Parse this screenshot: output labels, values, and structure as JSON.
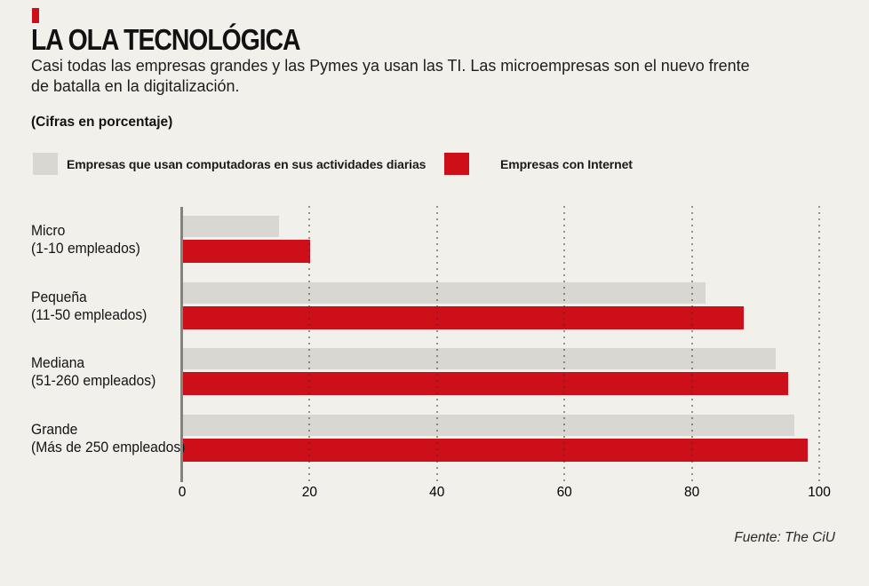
{
  "header": {
    "title": "LA OLA TECNOLÓGICA",
    "subtitle_lines": [
      "Casi todas las empresas grandes y las Pymes ya usan las TI. Las microempresas son el nuevo frente",
      "de batalla en la digitalización."
    ],
    "units_note": "(Cifras en porcentaje)"
  },
  "legend": [
    {
      "label": "Empresas que usan computadoras en sus actividades diarias",
      "color": "#d9d7d2"
    },
    {
      "label": "Empresas con Internet",
      "color": "#cd0f19"
    }
  ],
  "chart_data": {
    "type": "bar",
    "orientation": "horizontal",
    "title": "LA OLA TECNOLÓGICA",
    "units": "porcentaje",
    "categories": [
      "Micro",
      "Pequeña",
      "Mediana",
      "Grande"
    ],
    "category_sublabels": [
      "(1-10 empleados)",
      "(11-50 empleados)",
      "(51-260 empleados)",
      "(Más de 250 empleados)"
    ],
    "series": [
      {
        "name": "Empresas que usan computadoras en sus actividades diarias",
        "color": "#d9d7d2",
        "values": [
          15,
          82,
          93,
          96
        ]
      },
      {
        "name": "Empresas con Internet",
        "color": "#cd0f19",
        "values": [
          20,
          88,
          95,
          98
        ]
      }
    ],
    "xlim": [
      0,
      100
    ],
    "x_ticks": [
      0,
      20,
      40,
      60,
      80,
      100
    ],
    "grid": "dotted-vertical",
    "legend_position": "top"
  },
  "footer": {
    "source": "Fuente: The CiU"
  },
  "colors": {
    "background": "#f2f0eb",
    "accent_red": "#cd0f19",
    "bar_gray": "#d9d7d2",
    "axis_line": "#85837e",
    "text": "#121212"
  }
}
